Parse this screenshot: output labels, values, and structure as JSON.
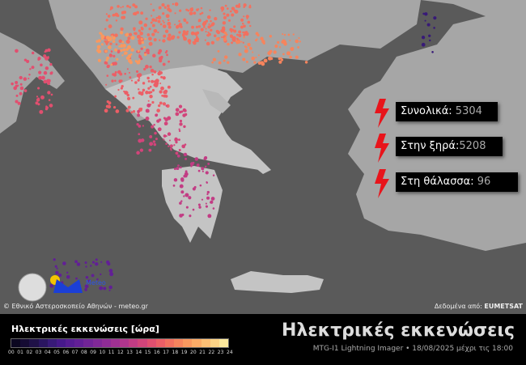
{
  "credits": {
    "left": "© Εθνικό Αστεροσκοπείο Αθηνών - meteo.gr",
    "right_prefix": "Δεδομένα από:",
    "right_source": "EUMETSAT"
  },
  "logo": {
    "text": "Meteo"
  },
  "stats": [
    {
      "label": "Συνολικά:",
      "value": "5304"
    },
    {
      "label": "Στην ξηρά:",
      "value": "5208"
    },
    {
      "label": "Στη θάλασσα:",
      "value": "96"
    }
  ],
  "legend": {
    "title": "Ηλεκτρικές εκκενώσεις [ώρα]",
    "ticks": [
      "00",
      "01",
      "02",
      "03",
      "04",
      "05",
      "06",
      "07",
      "08",
      "09",
      "10",
      "11",
      "12",
      "13",
      "14",
      "15",
      "16",
      "17",
      "18",
      "19",
      "20",
      "21",
      "22",
      "23",
      "24"
    ],
    "colors": [
      "#0b0720",
      "#150b33",
      "#1f1147",
      "#2a1560",
      "#381a78",
      "#46198a",
      "#551c92",
      "#621f96",
      "#712497",
      "#802897",
      "#8f2c96",
      "#9f3092",
      "#b0358d",
      "#c23c84",
      "#d2447a",
      "#e14f6f",
      "#ec5e66",
      "#f2705f",
      "#f6845d",
      "#f9985f",
      "#fbab67",
      "#fcbf75",
      "#fcd386",
      "#fbe89c",
      "#fcf7b6"
    ]
  },
  "header": {
    "title": "Ηλεκτρικές εκκενώσεις",
    "subtitle": "MTG-I1 Lightning Imager • 18/08/2025 μέχρι τις 18:00"
  },
  "colors": {
    "sea": "#5a5a5a",
    "land": "#a9a9a9",
    "greece": "#c9c9c9",
    "bolt": "#e8141b"
  }
}
